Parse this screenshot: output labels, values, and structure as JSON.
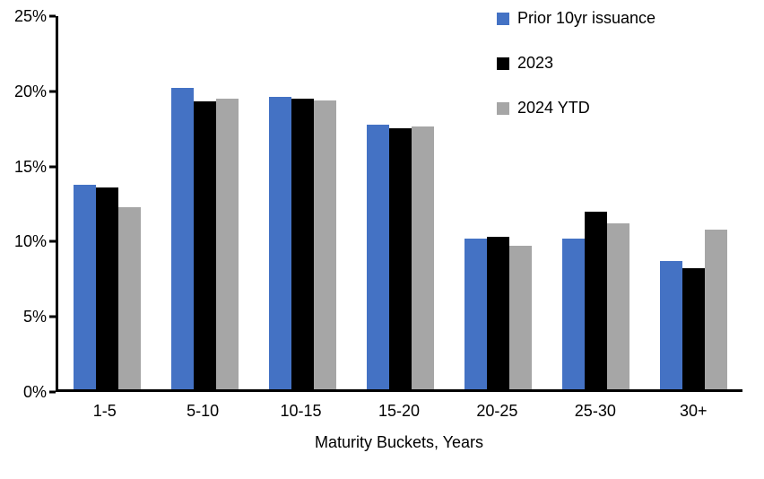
{
  "chart_data": {
    "type": "bar",
    "title": "",
    "categories": [
      "1-5",
      "5-10",
      "10-15",
      "15-20",
      "20-25",
      "25-30",
      "30+"
    ],
    "series": [
      {
        "name": "Prior 10yr issuance",
        "color": "#4472C4",
        "values": [
          13.7,
          20.2,
          19.6,
          17.7,
          10.1,
          10.1,
          8.6
        ]
      },
      {
        "name": "2023",
        "color": "#000000",
        "values": [
          13.5,
          19.3,
          19.45,
          17.5,
          10.2,
          11.9,
          8.1
        ]
      },
      {
        "name": "2024 YTD",
        "color": "#A6A6A6",
        "values": [
          12.2,
          19.5,
          19.35,
          17.6,
          9.6,
          11.1,
          10.7
        ]
      }
    ],
    "xlabel": "Maturity Buckets, Years",
    "ylabel": "",
    "ylim": [
      0,
      25
    ],
    "ytick_step": 5,
    "ytick_suffix": "%",
    "grid": false,
    "legend_position": "top-right"
  }
}
